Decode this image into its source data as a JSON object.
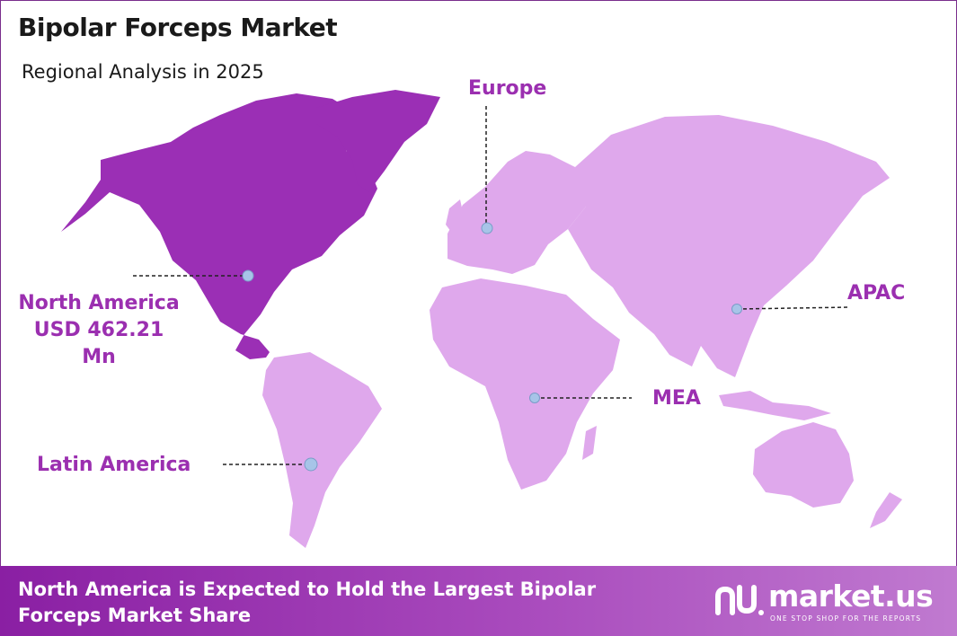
{
  "header": {
    "title": "Bipolar Forceps Market",
    "subtitle": "Regional Analysis in 2025"
  },
  "regions": {
    "north_america": {
      "name": "North America",
      "value": "USD 462.21 Mn",
      "highlighted": true
    },
    "europe": {
      "name": "Europe",
      "highlighted": false
    },
    "apac": {
      "name": "APAC",
      "highlighted": false
    },
    "mea": {
      "name": "MEA",
      "highlighted": false
    },
    "latin_america": {
      "name": "Latin America",
      "highlighted": false
    }
  },
  "colors": {
    "highlight_region": "#9b2fb5",
    "other_region": "#dfa8ec",
    "label": "#9b2fb0",
    "marker": "#a7c4e8",
    "footer_start": "#8a1fa3",
    "footer_end": "#c07ad0"
  },
  "footer": {
    "message": "North America is Expected to Hold the Largest Bipolar Forceps Market Share"
  },
  "brand": {
    "name": "market.us",
    "tagline": "ONE STOP SHOP FOR THE REPORTS",
    "icon": "market-us-logo-icon"
  }
}
